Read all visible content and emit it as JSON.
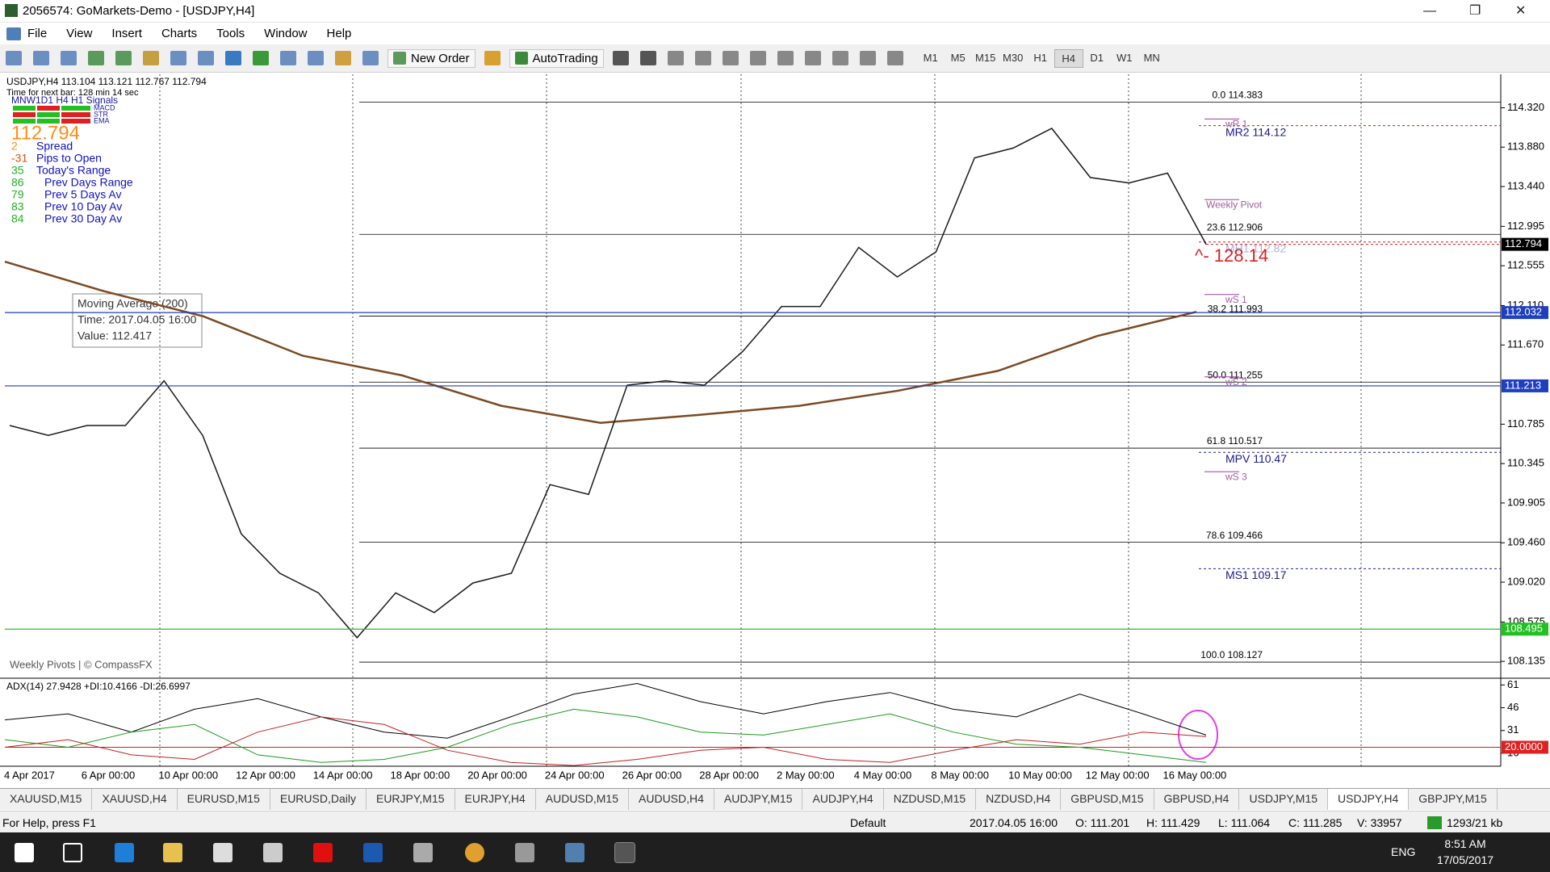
{
  "window": {
    "title": "2056574: GoMarkets-Demo - [USDJPY,H4]"
  },
  "menu": [
    "File",
    "View",
    "Insert",
    "Charts",
    "Tools",
    "Window",
    "Help"
  ],
  "toolbar": {
    "new_order": "New Order",
    "auto_trading": "AutoTrading",
    "timeframes": [
      "M1",
      "M5",
      "M15",
      "M30",
      "H1",
      "H4",
      "D1",
      "W1",
      "MN"
    ]
  },
  "chart": {
    "info": "USDJPY,H4 113.104 113.121 112.767 112.794",
    "next_bar": "Time for next bar: 128 min 14 sec",
    "signals": {
      "title": "MNW1D1 H4 H1 Signals",
      "rows": [
        "MACD",
        "STR",
        "EMA"
      ]
    },
    "last_price": "112.794",
    "stats": [
      [
        2,
        "Spread"
      ],
      [
        -31,
        "Pips to Open"
      ],
      [
        35,
        "Today's Range"
      ],
      [
        86,
        "Prev Days Range"
      ],
      [
        79,
        "Prev 5 Days Av"
      ],
      [
        83,
        "Prev 10 Day Av"
      ],
      [
        84,
        "Prev 30 Day Av"
      ]
    ],
    "tooltip": [
      "Moving Average (200)",
      "Time: 2017.04.05 16:00",
      "Value: 112.417"
    ],
    "credit": "Weekly Pivots | © CompassFX",
    "annotation": "^- 128.14",
    "ylim": [
      107.956,
      114.694
    ],
    "yticks": [
      {
        "value": 114.32,
        "label": "114.320"
      },
      {
        "value": 113.88,
        "label": "113.880"
      },
      {
        "value": 113.44,
        "label": "113.440"
      },
      112.995,
      112.555,
      {
        "value": 112.11,
        "label": "112.110"
      },
      {
        "value": 111.67,
        "label": "111.670"
      },
      110.785,
      110.345,
      109.905,
      {
        "value": 109.46,
        "label": "109.460"
      },
      {
        "value": 109.02,
        "label": "109.020"
      },
      108.575,
      108.135
    ],
    "categories": [
      "4 Apr 2017",
      "6 Apr 00:00",
      "10 Apr 00:00",
      "12 Apr 00:00",
      "14 Apr 00:00",
      "18 Apr 00:00",
      "20 Apr 00:00",
      "24 Apr 00:00",
      "26 Apr 00:00",
      "28 Apr 00:00",
      "2 May 00:00",
      "4 May 00:00",
      "8 May 00:00",
      "10 May 00:00",
      "12 May 00:00",
      "16 May 00:00"
    ],
    "price": {
      "color": "#1a1a1a",
      "values": [
        110.77,
        110.66,
        110.77,
        110.77,
        111.27,
        110.66,
        109.56,
        109.12,
        108.9,
        108.4,
        108.9,
        108.68,
        109.01,
        109.12,
        110.11,
        110.0,
        111.22,
        111.27,
        111.22,
        111.6,
        112.1,
        112.1,
        112.76,
        112.43,
        112.71,
        113.76,
        113.87,
        114.09,
        113.54,
        113.48,
        113.59,
        112.794
      ]
    },
    "ma200": {
      "color": "#7a4a22",
      "values": [
        112.6,
        112.27,
        111.99,
        111.55,
        111.33,
        110.99,
        110.8,
        110.89,
        110.99,
        111.16,
        111.38,
        111.77,
        112.04
      ]
    },
    "fib_levels": [
      {
        "label": "0.0 114.383",
        "value": 114.383
      },
      {
        "label": "23.6 112.906",
        "value": 112.906
      },
      {
        "label": "38.2 111.993",
        "value": 111.993
      },
      {
        "label": "50.0 111.255",
        "value": 111.255
      },
      {
        "label": "61.8 110.517",
        "value": 110.517
      },
      {
        "label": "78.6 109.466",
        "value": 109.466
      },
      {
        "label": "100.0 108.127",
        "value": 108.127
      }
    ],
    "pivots": [
      {
        "label": "MR2 114.12",
        "value": 114.12
      },
      {
        "label": "MH1 112.82",
        "value": 112.82
      },
      {
        "label": "MPV 110.47",
        "value": 110.47
      },
      {
        "label": "MS1 109.17",
        "value": 109.17
      }
    ],
    "weekly_labels": [
      {
        "label": "wR 1",
        "value": 114.14
      },
      {
        "label": "Weekly Pivot",
        "value": 113.24
      },
      {
        "label": "wS 1",
        "value": 112.18
      },
      {
        "label": "wS 2",
        "value": 111.26
      },
      {
        "label": "wS 3",
        "value": 110.2
      }
    ],
    "price_markers": [
      {
        "value": 112.794,
        "label": "112.794",
        "color": "#000000"
      },
      {
        "value": 112.032,
        "label": "112.032",
        "color": "#1f3fbf"
      },
      {
        "value": 111.213,
        "label": "111.213",
        "color": "#1f3fbf"
      },
      {
        "value": 108.495,
        "label": "108.495",
        "color": "#22c022"
      }
    ]
  },
  "adx": {
    "title": "ADX(14) 27.9428 +DI:10.4166 -DI:26.6997",
    "ylim": [
      7.5,
      64.9
    ],
    "yticks": [
      61,
      46,
      31,
      16
    ],
    "level": {
      "value": 20,
      "label": "20.0000"
    },
    "series": [
      {
        "color": "#000000",
        "values": [
          38,
          42,
          30,
          45,
          52,
          40,
          30,
          26,
          40,
          55,
          62,
          50,
          42,
          50,
          56,
          45,
          40,
          55,
          42,
          28
        ]
      },
      {
        "color": "#1a9a1a",
        "values": [
          25,
          20,
          30,
          35,
          15,
          10,
          12,
          20,
          35,
          45,
          40,
          30,
          28,
          35,
          42,
          30,
          22,
          20,
          15,
          10
        ]
      },
      {
        "color": "#c02020",
        "values": [
          20,
          25,
          15,
          12,
          30,
          40,
          35,
          18,
          10,
          8,
          12,
          18,
          20,
          12,
          10,
          18,
          25,
          22,
          30,
          27
        ]
      }
    ]
  },
  "tabs": [
    "XAUUSD,M15",
    "XAUUSD,H4",
    "EURUSD,M15",
    "EURUSD,Daily",
    "EURJPY,M15",
    "EURJPY,H4",
    "AUDUSD,M15",
    "AUDUSD,H4",
    "AUDJPY,M15",
    "AUDJPY,H4",
    "NZDUSD,M15",
    "NZDUSD,H4",
    "GBPUSD,M15",
    "GBPUSD,H4",
    "USDJPY,M15",
    "USDJPY,H4",
    "GBPJPY,M15"
  ],
  "status": {
    "help": "For Help, press F1",
    "profile": "Default",
    "time": "2017.04.05 16:00",
    "open": "O: 111.201",
    "high": "H: 111.429",
    "low": "L: 111.064",
    "close": "C: 111.285",
    "volume": "V: 33957",
    "traffic": "1293/21 kb"
  },
  "taskbar": {
    "lang": "ENG",
    "time": "8:51 AM",
    "date": "17/05/2017"
  }
}
